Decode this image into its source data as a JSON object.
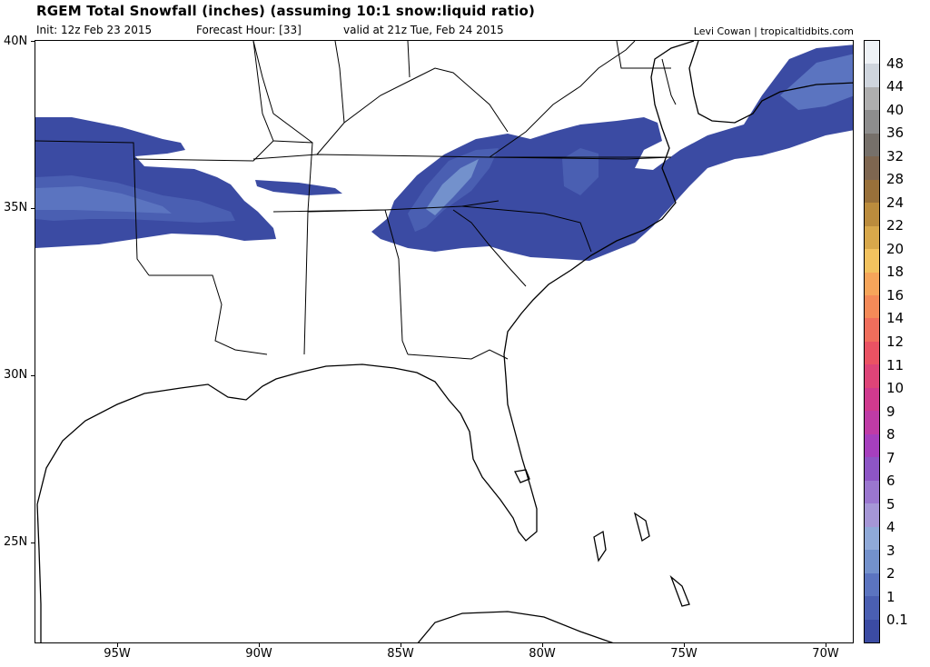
{
  "header": {
    "title": "RGEM Total Snowfall (inches) (assuming 10:1 snow:liquid ratio)",
    "init": "Init: 12z Feb 23 2015",
    "forecast": "Forecast Hour: [33]",
    "valid": "valid at 21z Tue, Feb 24 2015",
    "credit": "Levi Cowan | tropicaltidbits.com"
  },
  "axes": {
    "lat_labels": [
      "40N",
      "35N",
      "30N",
      "25N"
    ],
    "lon_labels": [
      "95W",
      "90W",
      "85W",
      "80W",
      "75W",
      "70W"
    ]
  },
  "colorbar": {
    "levels": [
      "0.1",
      "1",
      "2",
      "3",
      "4",
      "5",
      "6",
      "7",
      "8",
      "9",
      "10",
      "11",
      "12",
      "14",
      "16",
      "18",
      "20",
      "22",
      "24",
      "28",
      "32",
      "36",
      "40",
      "44",
      "48"
    ],
    "colors": [
      "#3b4ba3",
      "#4a5fb2",
      "#5b74c0",
      "#7391cc",
      "#8fa9d8",
      "#a596d6",
      "#9a76cf",
      "#8d55c6",
      "#a63fbe",
      "#bf3ba6",
      "#d03a8e",
      "#de4478",
      "#ea5263",
      "#f06e5c",
      "#f48a58",
      "#f6a55a",
      "#f2c25f",
      "#d8a84b",
      "#bb8c3d",
      "#98703a",
      "#7e6650",
      "#76706a",
      "#8d8d8d",
      "#aeaeae",
      "#cfd5dd",
      "#eef2f6"
    ]
  },
  "snow_color": "#3b4ba3"
}
